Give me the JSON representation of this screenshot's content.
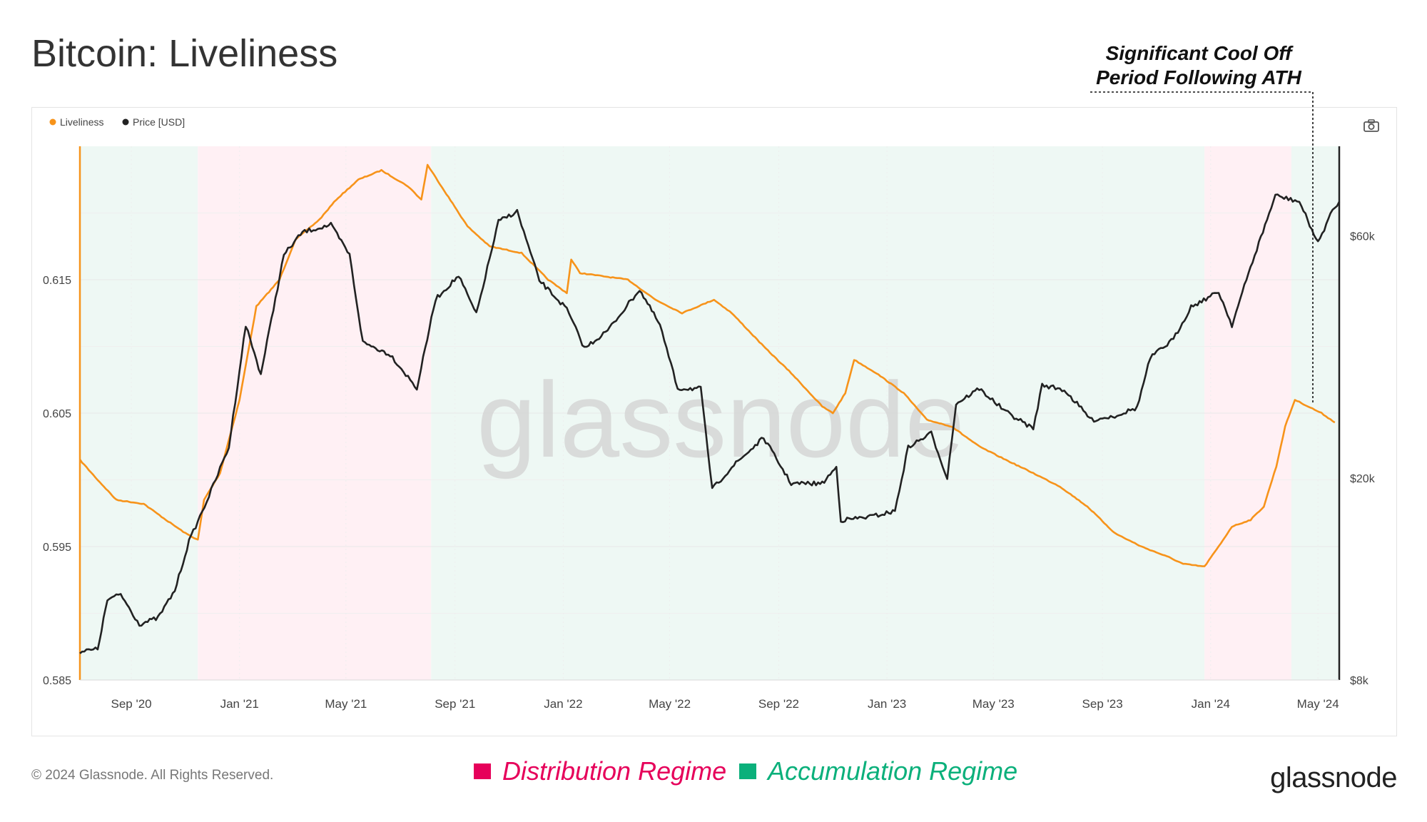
{
  "header": {
    "title": "Bitcoin: Liveliness"
  },
  "annotation": {
    "line1": "Significant Cool Off",
    "line2": "Period Following ATH"
  },
  "watermark": "glassnode",
  "footer": {
    "copyright": "© 2024 Glassnode. All Rights Reserved.",
    "distribution_label": "Distribution Regime",
    "accumulation_label": "Accumulation Regime",
    "brand": "glassnode"
  },
  "colors": {
    "liveliness": "#f7931a",
    "price": "#222222",
    "distribution": "#e6005a",
    "accumulation": "#0bb07b",
    "distribution_band": "#fff0f4",
    "accumulation_band": "#eef8f4"
  },
  "icons": {
    "camera": "camera-icon"
  },
  "chart_data": {
    "type": "line",
    "legend": [
      "Liveliness",
      "Price [USD]"
    ],
    "legend_position": "top-left",
    "x_ticks": [
      "Sep '20",
      "Jan '21",
      "May '21",
      "Sep '21",
      "Jan '22",
      "May '22",
      "Sep '22",
      "Jan '23",
      "May '23",
      "Sep '23",
      "Jan '24",
      "May '24"
    ],
    "x_range": [
      "2020-07-05",
      "2024-05-25"
    ],
    "y_left": {
      "ticks": [
        "0.615",
        "0.605",
        "0.595",
        "0.585"
      ],
      "range": [
        0.585,
        0.625
      ]
    },
    "y_right": {
      "ticks": [
        "$60k",
        "$20k",
        "$8k"
      ],
      "scale": "log",
      "range": [
        8000,
        90000
      ]
    },
    "regimes": [
      {
        "type": "accumulation",
        "start": "2020-07-05",
        "end": "2020-11-15"
      },
      {
        "type": "distribution",
        "start": "2020-11-15",
        "end": "2021-08-05"
      },
      {
        "type": "accumulation",
        "start": "2021-08-05",
        "end": "2023-12-25"
      },
      {
        "type": "distribution",
        "start": "2023-12-25",
        "end": "2024-04-01"
      },
      {
        "type": "accumulation",
        "start": "2024-04-01",
        "end": "2024-05-25"
      }
    ],
    "series": [
      {
        "name": "Liveliness",
        "axis": "left",
        "points": [
          [
            "2020-07-05",
            0.6015
          ],
          [
            "2020-07-25",
            0.6
          ],
          [
            "2020-08-15",
            0.5985
          ],
          [
            "2020-09-15",
            0.5982
          ],
          [
            "2020-10-10",
            0.597
          ],
          [
            "2020-11-01",
            0.596
          ],
          [
            "2020-11-15",
            0.5955
          ],
          [
            "2020-11-22",
            0.5985
          ],
          [
            "2020-12-10",
            0.6005
          ],
          [
            "2021-01-01",
            0.606
          ],
          [
            "2021-01-20",
            0.613
          ],
          [
            "2021-02-15",
            0.615
          ],
          [
            "2021-03-05",
            0.618
          ],
          [
            "2021-04-01",
            0.6195
          ],
          [
            "2021-04-20",
            0.621
          ],
          [
            "2021-05-15",
            0.6225
          ],
          [
            "2021-06-10",
            0.6232
          ],
          [
            "2021-07-10",
            0.622
          ],
          [
            "2021-07-25",
            0.621
          ],
          [
            "2021-08-01",
            0.6236
          ],
          [
            "2021-09-15",
            0.619
          ],
          [
            "2021-10-10",
            0.6175
          ],
          [
            "2021-11-15",
            0.617
          ],
          [
            "2021-12-15",
            0.615
          ],
          [
            "2022-01-05",
            0.614
          ],
          [
            "2022-01-10",
            0.6165
          ],
          [
            "2022-01-20",
            0.6155
          ],
          [
            "2022-03-15",
            0.615
          ],
          [
            "2022-04-15",
            0.6135
          ],
          [
            "2022-05-15",
            0.6125
          ],
          [
            "2022-06-20",
            0.6135
          ],
          [
            "2022-07-10",
            0.6125
          ],
          [
            "2022-08-15",
            0.61
          ],
          [
            "2022-09-15",
            0.608
          ],
          [
            "2022-10-20",
            0.6055
          ],
          [
            "2022-11-01",
            0.605
          ],
          [
            "2022-11-15",
            0.6065
          ],
          [
            "2022-11-25",
            0.609
          ],
          [
            "2022-12-20",
            0.608
          ],
          [
            "2023-01-20",
            0.6065
          ],
          [
            "2023-02-15",
            0.6045
          ],
          [
            "2023-03-15",
            0.604
          ],
          [
            "2023-04-15",
            0.6025
          ],
          [
            "2023-05-15",
            0.6015
          ],
          [
            "2023-06-15",
            0.6005
          ],
          [
            "2023-07-15",
            0.5995
          ],
          [
            "2023-08-15",
            0.598
          ],
          [
            "2023-09-15",
            0.596
          ],
          [
            "2023-10-15",
            0.595
          ],
          [
            "2023-11-15",
            0.5942
          ],
          [
            "2023-12-01",
            0.5937
          ],
          [
            "2023-12-25",
            0.5935
          ],
          [
            "2024-01-10",
            0.595
          ],
          [
            "2024-01-25",
            0.5965
          ],
          [
            "2024-02-15",
            0.597
          ],
          [
            "2024-03-01",
            0.598
          ],
          [
            "2024-03-15",
            0.601
          ],
          [
            "2024-03-25",
            0.604
          ],
          [
            "2024-04-05",
            0.606
          ],
          [
            "2024-04-20",
            0.6055
          ],
          [
            "2024-05-05",
            0.605
          ],
          [
            "2024-05-20",
            0.6043
          ]
        ]
      },
      {
        "name": "Price [USD]",
        "axis": "right",
        "points": [
          [
            "2020-07-05",
            9100
          ],
          [
            "2020-07-25",
            9200
          ],
          [
            "2020-08-05",
            11500
          ],
          [
            "2020-08-20",
            11800
          ],
          [
            "2020-09-10",
            10300
          ],
          [
            "2020-10-01",
            10600
          ],
          [
            "2020-10-20",
            12000
          ],
          [
            "2020-11-05",
            15000
          ],
          [
            "2020-11-25",
            18000
          ],
          [
            "2020-12-20",
            23000
          ],
          [
            "2021-01-08",
            40000
          ],
          [
            "2021-01-25",
            32000
          ],
          [
            "2021-02-20",
            55000
          ],
          [
            "2021-03-13",
            61000
          ],
          [
            "2021-04-14",
            63000
          ],
          [
            "2021-05-05",
            55000
          ],
          [
            "2021-05-20",
            37000
          ],
          [
            "2021-06-20",
            35000
          ],
          [
            "2021-07-20",
            30000
          ],
          [
            "2021-08-10",
            45000
          ],
          [
            "2021-09-05",
            50000
          ],
          [
            "2021-09-25",
            42000
          ],
          [
            "2021-10-20",
            64000
          ],
          [
            "2021-11-10",
            67000
          ],
          [
            "2021-12-05",
            49000
          ],
          [
            "2022-01-05",
            43000
          ],
          [
            "2022-01-25",
            36000
          ],
          [
            "2022-02-20",
            39000
          ],
          [
            "2022-03-28",
            47000
          ],
          [
            "2022-04-20",
            40000
          ],
          [
            "2022-05-10",
            30000
          ],
          [
            "2022-06-05",
            30000
          ],
          [
            "2022-06-18",
            19000
          ],
          [
            "2022-07-10",
            21000
          ],
          [
            "2022-08-15",
            24000
          ],
          [
            "2022-09-15",
            19500
          ],
          [
            "2022-10-20",
            19500
          ],
          [
            "2022-11-05",
            21000
          ],
          [
            "2022-11-10",
            16500
          ],
          [
            "2022-12-15",
            16800
          ],
          [
            "2023-01-10",
            17200
          ],
          [
            "2023-01-25",
            23000
          ],
          [
            "2023-02-20",
            24500
          ],
          [
            "2023-03-10",
            20000
          ],
          [
            "2023-03-20",
            28000
          ],
          [
            "2023-04-15",
            30000
          ],
          [
            "2023-05-15",
            27000
          ],
          [
            "2023-06-15",
            25000
          ],
          [
            "2023-06-25",
            30500
          ],
          [
            "2023-07-20",
            29800
          ],
          [
            "2023-08-20",
            26000
          ],
          [
            "2023-09-15",
            26500
          ],
          [
            "2023-10-10",
            27500
          ],
          [
            "2023-10-25",
            34500
          ],
          [
            "2023-11-20",
            37500
          ],
          [
            "2023-12-10",
            43500
          ],
          [
            "2024-01-10",
            46500
          ],
          [
            "2024-01-25",
            40000
          ],
          [
            "2024-02-15",
            52000
          ],
          [
            "2024-03-14",
            72000
          ],
          [
            "2024-04-10",
            70000
          ],
          [
            "2024-05-01",
            58000
          ],
          [
            "2024-05-15",
            66000
          ],
          [
            "2024-05-25",
            70000
          ]
        ]
      }
    ]
  }
}
